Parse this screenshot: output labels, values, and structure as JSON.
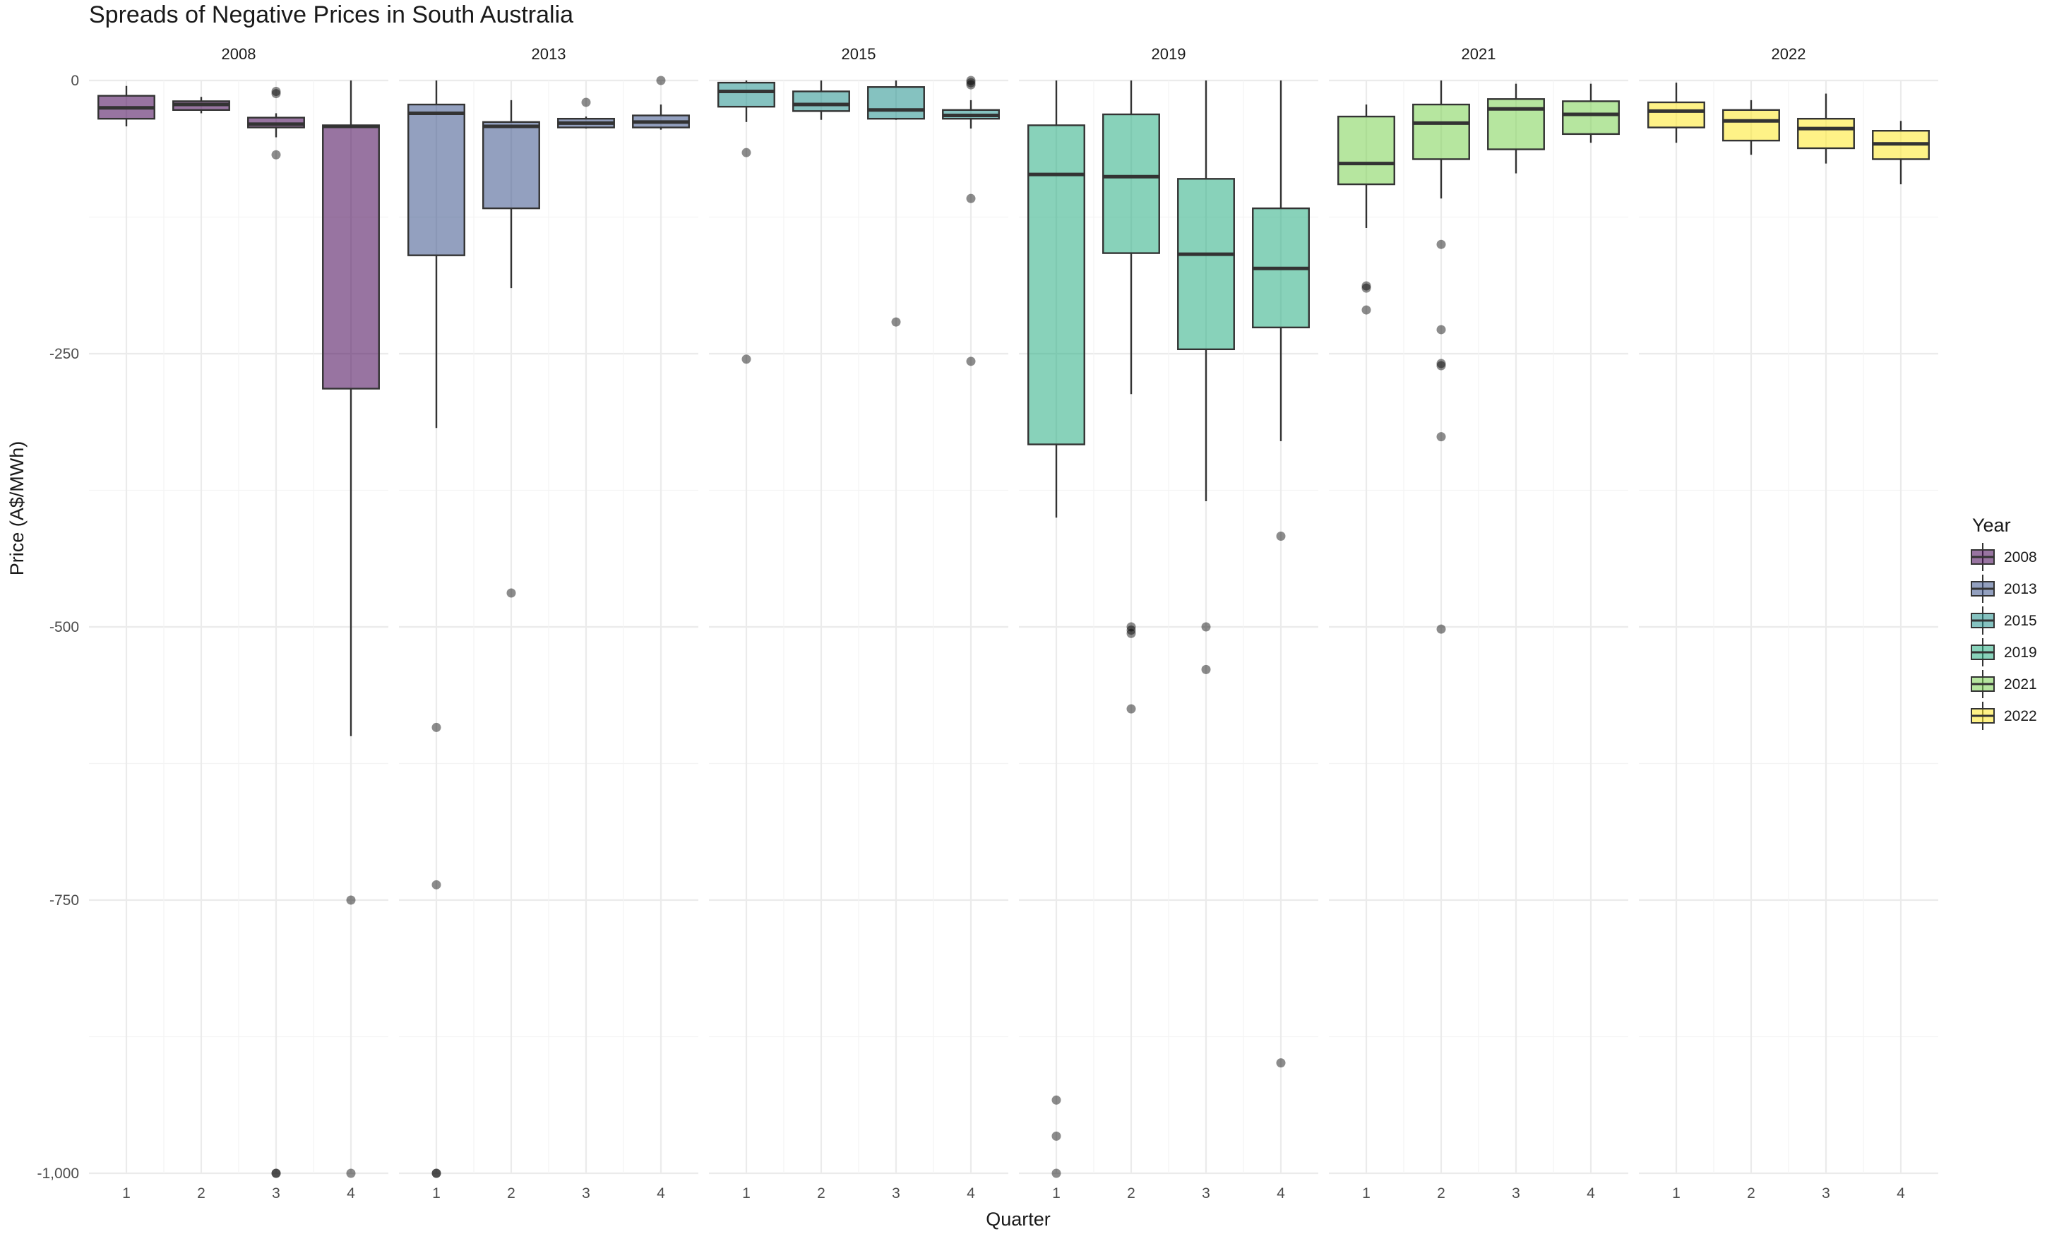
{
  "chart_data": {
    "type": "boxplot",
    "title": "Spreads of Negative Prices in South Australia",
    "xlabel": "Quarter",
    "ylabel": "Price (A$/MWh)",
    "ylim": [
      -1000,
      0
    ],
    "y_ticks": [
      0,
      -250,
      -500,
      -750,
      -1000
    ],
    "y_tick_labels": [
      "0",
      "-250",
      "-500",
      "-750",
      "-1,000"
    ],
    "categories": [
      "1",
      "2",
      "3",
      "4"
    ],
    "grid": true,
    "legend": {
      "title": "Year",
      "position": "right"
    },
    "facets": [
      {
        "name": "2008",
        "color": "#440154",
        "boxes": [
          {
            "quarter": "1",
            "whisker_low": -42,
            "q1": -35,
            "median": -25,
            "q3": -14,
            "whisker_high": -5,
            "outliers": []
          },
          {
            "quarter": "2",
            "whisker_low": -30,
            "q1": -27,
            "median": -22,
            "q3": -19,
            "whisker_high": -15,
            "outliers": []
          },
          {
            "quarter": "3",
            "whisker_low": -52,
            "q1": -43,
            "median": -40,
            "q3": -34,
            "whisker_high": -30,
            "outliers": [
              -10,
              -12,
              -68,
              -1000,
              -1000
            ]
          },
          {
            "quarter": "4",
            "whisker_low": -600,
            "q1": -282,
            "median": -42,
            "q3": -41,
            "whisker_high": 0,
            "outliers": [
              -750,
              -1000
            ]
          }
        ]
      },
      {
        "name": "2013",
        "color": "#3B528B",
        "boxes": [
          {
            "quarter": "1",
            "whisker_low": -318,
            "q1": -160,
            "median": -30,
            "q3": -22,
            "whisker_high": 0,
            "outliers": [
              -592,
              -736,
              -1000,
              -1000
            ]
          },
          {
            "quarter": "2",
            "whisker_low": -190,
            "q1": -117,
            "median": -42,
            "q3": -38,
            "whisker_high": -18,
            "outliers": [
              -469
            ]
          },
          {
            "quarter": "3",
            "whisker_low": -44,
            "q1": -43,
            "median": -39,
            "q3": -35,
            "whisker_high": -33,
            "outliers": [
              -20
            ]
          },
          {
            "quarter": "4",
            "whisker_low": -45,
            "q1": -43,
            "median": -38,
            "q3": -32,
            "whisker_high": -22,
            "outliers": [
              0
            ]
          }
        ]
      },
      {
        "name": "2015",
        "color": "#21908C",
        "boxes": [
          {
            "quarter": "1",
            "whisker_low": -38,
            "q1": -24,
            "median": -10,
            "q3": -2,
            "whisker_high": 0,
            "outliers": [
              -66,
              -255
            ]
          },
          {
            "quarter": "2",
            "whisker_low": -36,
            "q1": -28,
            "median": -22,
            "q3": -10,
            "whisker_high": 0,
            "outliers": []
          },
          {
            "quarter": "3",
            "whisker_low": -36,
            "q1": -35,
            "median": -27,
            "q3": -6,
            "whisker_high": 0,
            "outliers": [
              -221
            ]
          },
          {
            "quarter": "4",
            "whisker_low": -44,
            "q1": -35,
            "median": -32,
            "q3": -27,
            "whisker_high": -18,
            "outliers": [
              0,
              -2,
              -4,
              -108,
              -257
            ]
          }
        ]
      },
      {
        "name": "2019",
        "color": "#27AD81",
        "boxes": [
          {
            "quarter": "1",
            "whisker_low": -400,
            "q1": -333,
            "median": -86,
            "q3": -41,
            "whisker_high": 0,
            "outliers": [
              -933,
              -966,
              -1000
            ]
          },
          {
            "quarter": "2",
            "whisker_low": -287,
            "q1": -158,
            "median": -88,
            "q3": -31,
            "whisker_high": 0,
            "outliers": [
              -500,
              -503,
              -506,
              -575
            ]
          },
          {
            "quarter": "3",
            "whisker_low": -385,
            "q1": -246,
            "median": -159,
            "q3": -90,
            "whisker_high": 0,
            "outliers": [
              -500,
              -539
            ]
          },
          {
            "quarter": "4",
            "whisker_low": -330,
            "q1": -226,
            "median": -172,
            "q3": -117,
            "whisker_high": 0,
            "outliers": [
              -417,
              -899
            ]
          }
        ]
      },
      {
        "name": "2021",
        "color": "#7AD151",
        "boxes": [
          {
            "quarter": "1",
            "whisker_low": -135,
            "q1": -95,
            "median": -76,
            "q3": -33,
            "whisker_high": -22,
            "outliers": [
              -188,
              -190,
              -210
            ]
          },
          {
            "quarter": "2",
            "whisker_low": -108,
            "q1": -72,
            "median": -39,
            "q3": -22,
            "whisker_high": 0,
            "outliers": [
              -150,
              -228,
              -259,
              -261,
              -326,
              -502
            ]
          },
          {
            "quarter": "3",
            "whisker_low": -85,
            "q1": -63,
            "median": -26,
            "q3": -17,
            "whisker_high": -3,
            "outliers": []
          },
          {
            "quarter": "4",
            "whisker_low": -57,
            "q1": -49,
            "median": -31,
            "q3": -19,
            "whisker_high": -3,
            "outliers": []
          }
        ]
      },
      {
        "name": "2022",
        "color": "#FDE725",
        "boxes": [
          {
            "quarter": "1",
            "whisker_low": -57,
            "q1": -43,
            "median": -28,
            "q3": -20,
            "whisker_high": -2,
            "outliers": []
          },
          {
            "quarter": "2",
            "whisker_low": -68,
            "q1": -55,
            "median": -37,
            "q3": -27,
            "whisker_high": -18,
            "outliers": []
          },
          {
            "quarter": "3",
            "whisker_low": -76,
            "q1": -62,
            "median": -44,
            "q3": -35,
            "whisker_high": -12,
            "outliers": []
          },
          {
            "quarter": "4",
            "whisker_low": -95,
            "q1": -72,
            "median": -58,
            "q3": -46,
            "whisker_high": -37,
            "outliers": []
          }
        ]
      }
    ]
  }
}
